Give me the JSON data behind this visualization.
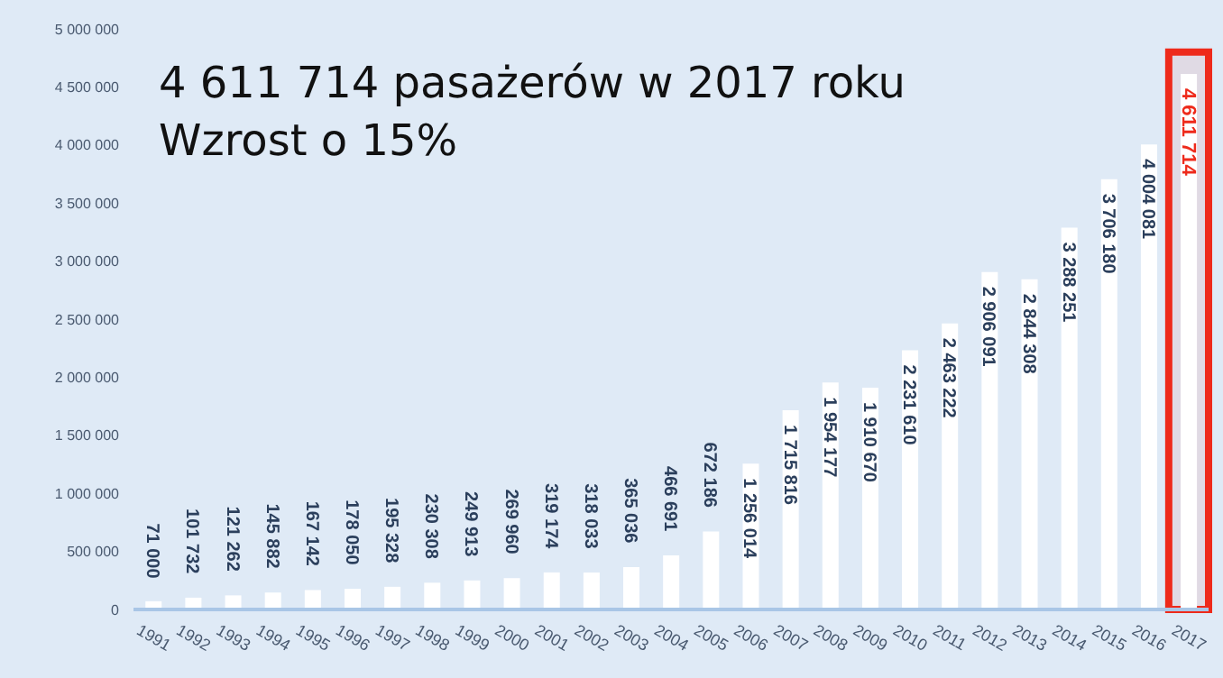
{
  "chart_data": {
    "type": "bar",
    "title": "4 611 714 pasażerów w 2017 roku",
    "subtitle": "Wzrost o 15%",
    "categories": [
      "1991",
      "1992",
      "1993",
      "1994",
      "1995",
      "1996",
      "1997",
      "1998",
      "1999",
      "2000",
      "2001",
      "2002",
      "2003",
      "2004",
      "2005",
      "2006",
      "2007",
      "2008",
      "2009",
      "2010",
      "2011",
      "2012",
      "2013",
      "2014",
      "2015",
      "2016",
      "2017"
    ],
    "values": [
      71000,
      101732,
      121262,
      145882,
      167142,
      178050,
      195328,
      230308,
      249913,
      269960,
      319174,
      318033,
      365036,
      466691,
      672186,
      1256014,
      1715816,
      1954177,
      1910670,
      2231610,
      2463222,
      2906091,
      2844308,
      3288251,
      3706180,
      4004081,
      4611714
    ],
    "color": "#ffffff",
    "ylim": [
      0,
      5000000
    ],
    "yticks": [
      {
        "value": 0,
        "label": "0"
      },
      {
        "value": 500000,
        "label": "500 000"
      },
      {
        "value": 1000000,
        "label": "1 000 000"
      },
      {
        "value": 1500000,
        "label": "1 500 000"
      },
      {
        "value": 2000000,
        "label": "2 000 000"
      },
      {
        "value": 2500000,
        "label": "2 500 000"
      },
      {
        "value": 3000000,
        "label": "3 000 000"
      },
      {
        "value": 3500000,
        "label": "3 500 000"
      },
      {
        "value": 4000000,
        "label": "4 000 000"
      },
      {
        "value": 4500000,
        "label": "4 500 000"
      },
      {
        "value": 5000000,
        "label": "5 000 000"
      }
    ],
    "bands": [
      {
        "axis": "x",
        "from": "2017",
        "to": "2017",
        "color": "#ee2a1b"
      }
    ],
    "data_labels": true,
    "grid": false,
    "legend": false
  }
}
